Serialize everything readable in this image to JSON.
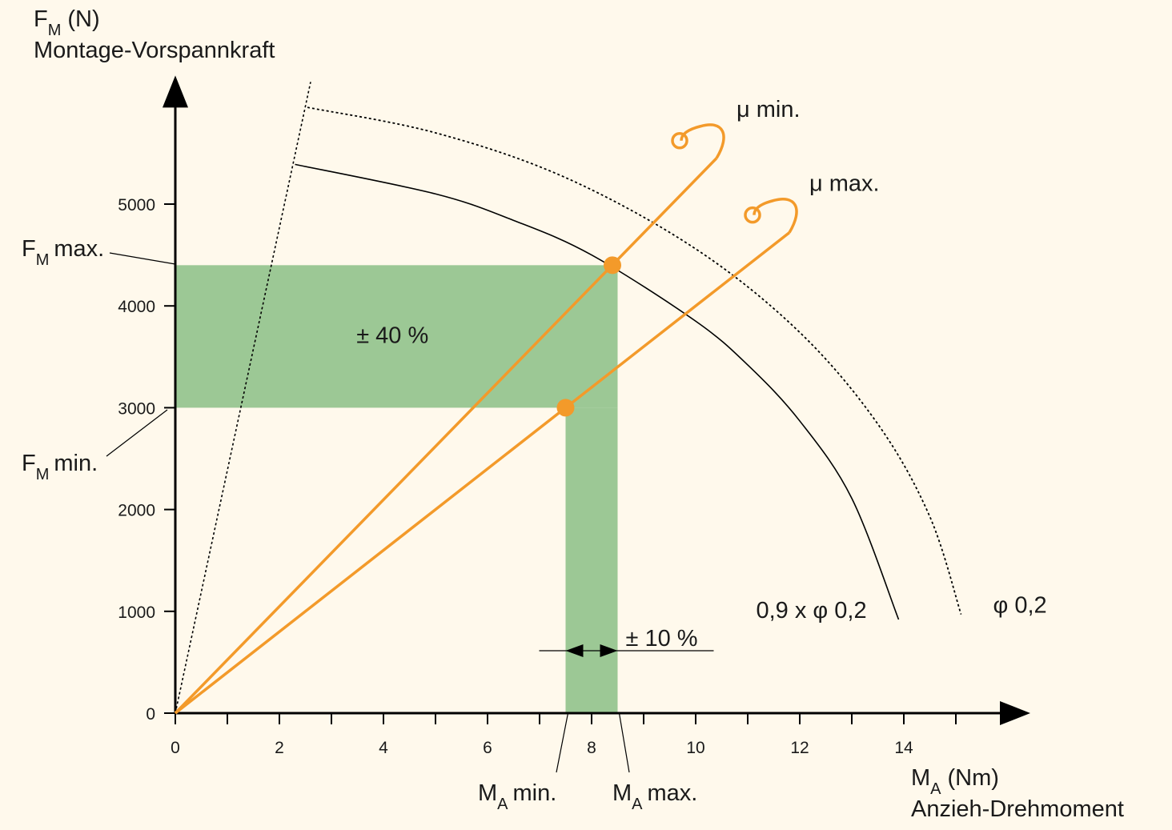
{
  "chart_data": {
    "type": "line",
    "y_label": {
      "symbol": "F",
      "sub": "M",
      "unit": "(N)",
      "text": "Montage-Vorspannkraft"
    },
    "x_label": {
      "symbol": "M",
      "sub": "A",
      "unit": "(Nm)",
      "text": "Anzieh-Drehmoment"
    },
    "xlim": [
      0,
      16
    ],
    "ylim": [
      0,
      6200
    ],
    "xticks": [
      0,
      2,
      4,
      6,
      8,
      10,
      12,
      14
    ],
    "xticks_minor": [
      1,
      3,
      5,
      7,
      9,
      11,
      13,
      15
    ],
    "yticks": [
      0,
      1000,
      2000,
      3000,
      4000,
      5000
    ],
    "series": [
      {
        "name": "μ min.",
        "color": "#f39a2a",
        "x": [
          0,
          10.4
        ],
        "values": [
          0,
          5450
        ]
      },
      {
        "name": "μ max.",
        "color": "#f39a2a",
        "x": [
          0,
          11.8
        ],
        "values": [
          0,
          4720
        ]
      }
    ],
    "markers": [
      {
        "x": 8.4,
        "y": 4400
      },
      {
        "x": 7.5,
        "y": 3000
      }
    ],
    "bands": [
      {
        "x": [
          0,
          8.5
        ],
        "y": [
          3000,
          4400
        ],
        "label": "± 40 %",
        "color": "#9cc895"
      },
      {
        "x": [
          7.5,
          8.5
        ],
        "y": [
          0,
          3000
        ],
        "label": "± 10 %",
        "color": "#9cc895"
      }
    ],
    "curves": [
      {
        "name": "0,9 x φ 0,2",
        "style": "solid",
        "x": [
          2.3,
          5,
          6.5,
          8,
          10,
          11,
          12,
          13,
          13.9
        ],
        "values": [
          5390,
          5100,
          4840,
          4500,
          3850,
          3420,
          2870,
          2110,
          920
        ]
      },
      {
        "name": "φ 0,2",
        "style": "dotted",
        "x": [
          2.54,
          5,
          7.5,
          10,
          12,
          13.5,
          14.5,
          15.1
        ],
        "values": [
          5950,
          5700,
          5260,
          4560,
          3740,
          2840,
          1930,
          970
        ]
      }
    ],
    "dotted_line": {
      "x": [
        0,
        2.6
      ],
      "values": [
        0,
        6200
      ]
    },
    "annotations": {
      "fm_max": {
        "symbol": "F",
        "sub": "M",
        "text": "max."
      },
      "fm_min": {
        "symbol": "F",
        "sub": "M",
        "text": "min."
      },
      "ma_min": {
        "symbol": "M",
        "sub": "A",
        "text": "min."
      },
      "ma_max": {
        "symbol": "M",
        "sub": "A",
        "text": "max."
      }
    }
  }
}
